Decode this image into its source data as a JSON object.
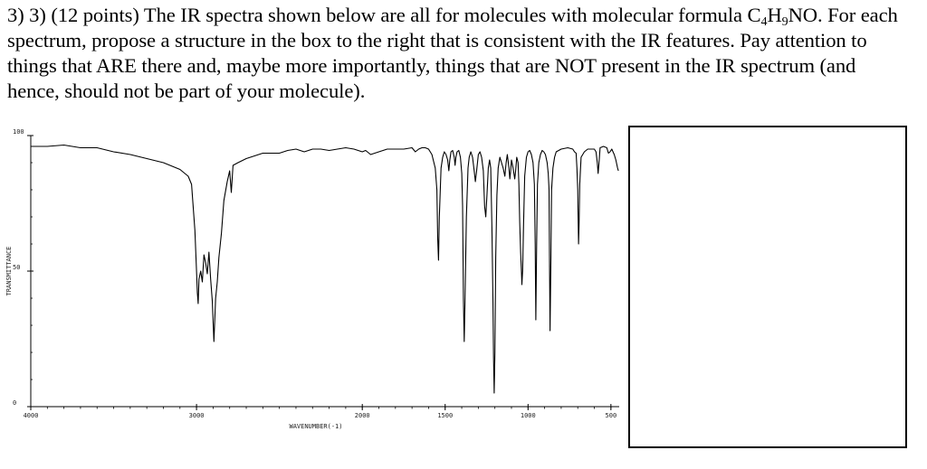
{
  "question": {
    "prefix": "3) 3) (12 points) The IR spectra shown below are all for molecules with molecular formula",
    "formula": {
      "c": "C",
      "c_sub": "4",
      "h": "H",
      "h_sub": "9",
      "rest": "NO."
    },
    "suffix": " For each spectrum, propose a structure in the box to the right that is consistent with the IR features. Pay attention to things that ARE there and, maybe more importantly, things that are NOT present in the IR spectrum (and hence, should not be part of your molecule)."
  },
  "chart_data": {
    "type": "line",
    "title": "",
    "xlabel": "WAVENUMBER(-1)",
    "ylabel": "TRANSMITTANCE",
    "xlim": [
      4000,
      450
    ],
    "ylim": [
      0,
      100
    ],
    "x_ticks": [
      4000,
      3000,
      2000,
      1500,
      1000,
      500
    ],
    "x_tick_labels": [
      "4000",
      "3000",
      "2000",
      "1500",
      "1000",
      "500"
    ],
    "y_ticks": [
      0,
      50,
      100
    ],
    "y_tick_labels": [
      "0",
      "50",
      "100"
    ],
    "series": [
      {
        "points": [
          [
            4000,
            96
          ],
          [
            3900,
            96
          ],
          [
            3800,
            96.5
          ],
          [
            3700,
            95.5
          ],
          [
            3600,
            95.5
          ],
          [
            3500,
            94
          ],
          [
            3400,
            93
          ],
          [
            3300,
            91.5
          ],
          [
            3200,
            90
          ],
          [
            3100,
            87.5
          ],
          [
            3050,
            85
          ],
          [
            3030,
            82
          ],
          [
            3010,
            65
          ],
          [
            3000,
            50
          ],
          [
            2995,
            42
          ],
          [
            2990,
            38
          ],
          [
            2985,
            47
          ],
          [
            2975,
            50
          ],
          [
            2965,
            46
          ],
          [
            2955,
            56
          ],
          [
            2945,
            53
          ],
          [
            2935,
            49
          ],
          [
            2925,
            57
          ],
          [
            2915,
            47
          ],
          [
            2905,
            39
          ],
          [
            2895,
            24
          ],
          [
            2885,
            40
          ],
          [
            2875,
            46
          ],
          [
            2865,
            55
          ],
          [
            2850,
            64
          ],
          [
            2835,
            76
          ],
          [
            2815,
            83
          ],
          [
            2800,
            87
          ],
          [
            2790,
            79
          ],
          [
            2780,
            89
          ],
          [
            2750,
            90
          ],
          [
            2700,
            91.5
          ],
          [
            2650,
            92.5
          ],
          [
            2600,
            93.5
          ],
          [
            2550,
            93.5
          ],
          [
            2500,
            93.5
          ],
          [
            2450,
            94.5
          ],
          [
            2400,
            95
          ],
          [
            2350,
            94
          ],
          [
            2300,
            95
          ],
          [
            2250,
            95
          ],
          [
            2200,
            94.5
          ],
          [
            2150,
            95
          ],
          [
            2100,
            95.5
          ],
          [
            2050,
            95
          ],
          [
            2000,
            94
          ],
          [
            1980,
            94.5
          ],
          [
            1950,
            93
          ],
          [
            1900,
            94
          ],
          [
            1850,
            95
          ],
          [
            1800,
            95
          ],
          [
            1750,
            95
          ],
          [
            1700,
            95.5
          ],
          [
            1680,
            94
          ],
          [
            1660,
            95
          ],
          [
            1640,
            95.5
          ],
          [
            1620,
            95.5
          ],
          [
            1600,
            95
          ],
          [
            1580,
            93
          ],
          [
            1560,
            88
          ],
          [
            1550,
            80
          ],
          [
            1545,
            62
          ],
          [
            1540,
            54
          ],
          [
            1535,
            70
          ],
          [
            1525,
            88
          ],
          [
            1515,
            92
          ],
          [
            1505,
            94
          ],
          [
            1495,
            93
          ],
          [
            1485,
            91
          ],
          [
            1478,
            87
          ],
          [
            1472,
            91
          ],
          [
            1465,
            94
          ],
          [
            1455,
            94.5
          ],
          [
            1445,
            92
          ],
          [
            1440,
            89
          ],
          [
            1435,
            92
          ],
          [
            1428,
            94
          ],
          [
            1418,
            94.5
          ],
          [
            1408,
            92
          ],
          [
            1400,
            86
          ],
          [
            1395,
            74
          ],
          [
            1390,
            40
          ],
          [
            1385,
            24
          ],
          [
            1380,
            40
          ],
          [
            1372,
            70
          ],
          [
            1362,
            88
          ],
          [
            1355,
            92
          ],
          [
            1345,
            94
          ],
          [
            1335,
            92
          ],
          [
            1325,
            87
          ],
          [
            1318,
            83
          ],
          [
            1310,
            87
          ],
          [
            1300,
            93
          ],
          [
            1290,
            94
          ],
          [
            1280,
            92
          ],
          [
            1270,
            87
          ],
          [
            1262,
            74
          ],
          [
            1255,
            70
          ],
          [
            1248,
            78
          ],
          [
            1240,
            88
          ],
          [
            1232,
            91
          ],
          [
            1225,
            88
          ],
          [
            1218,
            66
          ],
          [
            1212,
            40
          ],
          [
            1208,
            18
          ],
          [
            1204,
            5
          ],
          [
            1200,
            20
          ],
          [
            1195,
            55
          ],
          [
            1188,
            78
          ],
          [
            1180,
            88
          ],
          [
            1170,
            92
          ],
          [
            1160,
            90
          ],
          [
            1150,
            88
          ],
          [
            1140,
            85
          ],
          [
            1132,
            90
          ],
          [
            1125,
            93
          ],
          [
            1115,
            88
          ],
          [
            1110,
            84
          ],
          [
            1105,
            87
          ],
          [
            1100,
            91
          ],
          [
            1090,
            88
          ],
          [
            1080,
            84
          ],
          [
            1075,
            87
          ],
          [
            1068,
            92
          ],
          [
            1060,
            90
          ],
          [
            1055,
            82
          ],
          [
            1050,
            68
          ],
          [
            1045,
            57
          ],
          [
            1040,
            50
          ],
          [
            1037,
            45
          ],
          [
            1033,
            50
          ],
          [
            1027,
            68
          ],
          [
            1020,
            85
          ],
          [
            1010,
            92
          ],
          [
            1000,
            94
          ],
          [
            990,
            94.5
          ],
          [
            980,
            93
          ],
          [
            970,
            90
          ],
          [
            962,
            82
          ],
          [
            957,
            60
          ],
          [
            953,
            32
          ],
          [
            948,
            60
          ],
          [
            943,
            82
          ],
          [
            935,
            90
          ],
          [
            925,
            93
          ],
          [
            915,
            94.5
          ],
          [
            905,
            94
          ],
          [
            895,
            93
          ],
          [
            885,
            90
          ],
          [
            878,
            86
          ],
          [
            873,
            80
          ],
          [
            870,
            50
          ],
          [
            867,
            28
          ],
          [
            863,
            50
          ],
          [
            858,
            80
          ],
          [
            850,
            88
          ],
          [
            840,
            92
          ],
          [
            830,
            94
          ],
          [
            800,
            95
          ],
          [
            760,
            95.5
          ],
          [
            730,
            95
          ],
          [
            720,
            94
          ],
          [
            710,
            93.5
          ],
          [
            705,
            88
          ],
          [
            700,
            80
          ],
          [
            698,
            70
          ],
          [
            695,
            60
          ],
          [
            692,
            68
          ],
          [
            688,
            82
          ],
          [
            680,
            92
          ],
          [
            660,
            94
          ],
          [
            640,
            95
          ],
          [
            620,
            95
          ],
          [
            600,
            95
          ],
          [
            590,
            94
          ],
          [
            582,
            90
          ],
          [
            577,
            86
          ],
          [
            572,
            90
          ],
          [
            565,
            95.5
          ],
          [
            545,
            96
          ],
          [
            525,
            95.5
          ],
          [
            515,
            93.5
          ],
          [
            505,
            94
          ],
          [
            495,
            95
          ],
          [
            480,
            93
          ],
          [
            470,
            91
          ],
          [
            460,
            88
          ],
          [
            455,
            87
          ]
        ]
      }
    ]
  }
}
